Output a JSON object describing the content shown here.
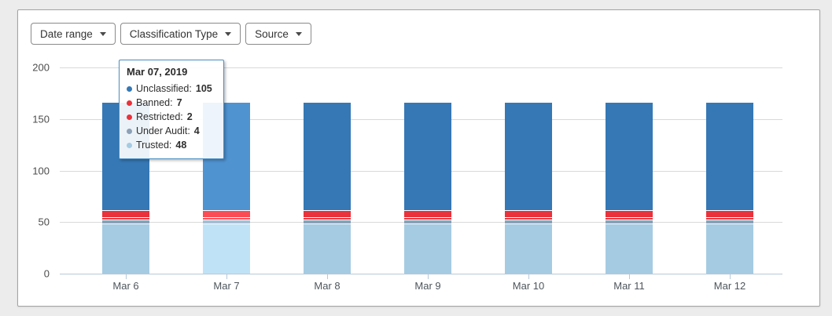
{
  "page": {
    "background": "#ececec",
    "card_background": "#ffffff"
  },
  "filters": [
    {
      "label": "Date range"
    },
    {
      "label": "Classification Type"
    },
    {
      "label": "Source"
    }
  ],
  "tooltip": {
    "title": "Mar 07, 2019",
    "rows": [
      {
        "label": "Unclassified",
        "value": "105",
        "color": "#3578b5"
      },
      {
        "label": "Banned",
        "value": "7",
        "color": "#e9323b"
      },
      {
        "label": "Restricted",
        "value": "2",
        "color": "#e9323b"
      },
      {
        "label": "Under Audit",
        "value": "4",
        "color": "#8ca0b6"
      },
      {
        "label": "Trusted",
        "value": "48",
        "color": "#a5cbe2"
      }
    ]
  },
  "chart_data": {
    "type": "bar",
    "stacked": true,
    "title": "",
    "xlabel": "",
    "ylabel": "",
    "categories": [
      "Mar 6",
      "Mar 7",
      "Mar 8",
      "Mar 9",
      "Mar 10",
      "Mar 11",
      "Mar 12"
    ],
    "series": [
      {
        "name": "Trusted",
        "color": "#a5cbe2",
        "hover_color": "#c0e2f7",
        "values": [
          48,
          48,
          48,
          48,
          48,
          48,
          48
        ]
      },
      {
        "name": "Under Audit",
        "color": "#8ca0b6",
        "hover_color": "#a9bdd3",
        "values": [
          4,
          4,
          4,
          4,
          4,
          4,
          4
        ]
      },
      {
        "name": "Restricted",
        "color": "#e9323b",
        "hover_color": "#fb4b55",
        "values": [
          2,
          2,
          2,
          2,
          2,
          2,
          2
        ]
      },
      {
        "name": "Banned",
        "color": "#e9323b",
        "hover_color": "#fb4b55",
        "values": [
          7,
          7,
          7,
          7,
          7,
          7,
          7
        ]
      },
      {
        "name": "Unclassified",
        "color": "#3578b5",
        "hover_color": "#4f93d1",
        "values": [
          105,
          105,
          105,
          105,
          105,
          105,
          105
        ]
      }
    ],
    "highlighted_category": "Mar 7",
    "y_ticks": [
      0,
      50,
      100,
      150,
      200
    ],
    "ylim": [
      0,
      200
    ],
    "grid": true,
    "legend_position": "none",
    "colors": {
      "gridline": "#d9d9d9",
      "axis": "#b7c9d9",
      "segment_separator": "#ffffff",
      "tooltip_border": "#4a8ec2"
    }
  }
}
